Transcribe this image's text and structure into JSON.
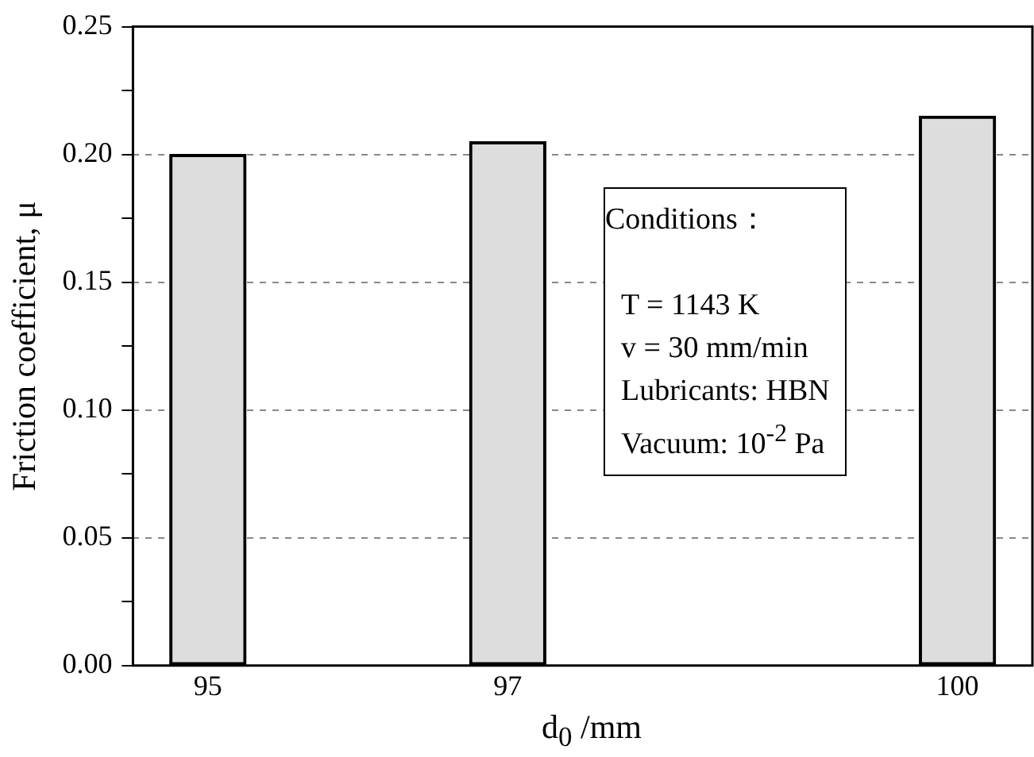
{
  "chart_data": {
    "type": "bar",
    "xlabel": "d$_{0}$ /mm",
    "ylabel": "Friction coefficient, μ",
    "x": [
      95,
      97,
      100
    ],
    "values": [
      0.2,
      0.205,
      0.215
    ],
    "color": "#dddddd",
    "xlim": [
      94.5,
      100.5
    ],
    "xticks": [
      95,
      97,
      100
    ],
    "ylim": [
      0,
      0.25
    ],
    "yticks": [
      {
        "value": 0,
        "label": "0.00"
      },
      {
        "value": 0.025,
        "label": null
      },
      0.05,
      {
        "value": 0.075,
        "label": null
      },
      {
        "value": 0.1,
        "label": "0.10"
      },
      {
        "value": 0.125,
        "label": null
      },
      0.15,
      {
        "value": 0.175,
        "label": null
      },
      {
        "value": 0.2,
        "label": "0.20"
      },
      {
        "value": 0.225,
        "label": null
      },
      0.25
    ],
    "grid": "y",
    "legend": false,
    "annotations": [
      "Conditions：",
      "T = 1143 K",
      "v = 30 mm/min",
      "Lubricants: HBN",
      "Vacuum: 10$^{-2}$ Pa"
    ]
  }
}
